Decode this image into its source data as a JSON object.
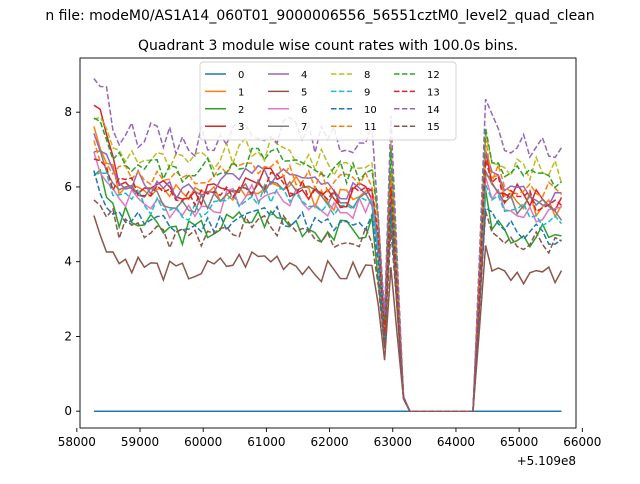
{
  "chart_data": {
    "type": "line",
    "suptitle": "n file: modeM0/AS1A14_060T01_9000006556_56551cztM0_level2_quad_clean",
    "title": "Quadrant 3 module wise count rates with 100.0s bins.",
    "xlabel": "",
    "ylabel": "",
    "x_offset_label": "+5.109e8",
    "xlim": [
      58050,
      65900
    ],
    "ylim": [
      -0.45,
      9.45
    ],
    "xticks": [
      58000,
      59000,
      60000,
      61000,
      62000,
      63000,
      64000,
      65000,
      66000
    ],
    "yticks": [
      0,
      2,
      4,
      6,
      8
    ],
    "grid": false,
    "legend_position": "top-center",
    "legend_columns": 4,
    "x_range": [
      58270,
      65670
    ],
    "bin_width": 100,
    "gap_start": 63370,
    "gap_end": 64370,
    "series": [
      {
        "name": "0",
        "color": "#1f77b4",
        "dash": "solid",
        "mean": 0.0,
        "start": 0.0,
        "noise": 0.0,
        "seed": 1
      },
      {
        "name": "1",
        "color": "#ff7f0e",
        "dash": "solid",
        "mean": 5.9,
        "start": 7.7,
        "noise": 0.35,
        "seed": 2
      },
      {
        "name": "2",
        "color": "#2ca02c",
        "dash": "solid",
        "mean": 5.0,
        "start": 6.5,
        "noise": 0.35,
        "seed": 3
      },
      {
        "name": "3",
        "color": "#d62728",
        "dash": "solid",
        "mean": 6.0,
        "start": 8.5,
        "noise": 0.35,
        "seed": 4
      },
      {
        "name": "4",
        "color": "#9467bd",
        "dash": "solid",
        "mean": 6.1,
        "start": 7.2,
        "noise": 0.3,
        "seed": 5
      },
      {
        "name": "5",
        "color": "#8c564b",
        "dash": "solid",
        "mean": 3.9,
        "start": 5.1,
        "noise": 0.3,
        "seed": 6
      },
      {
        "name": "6",
        "color": "#e377c2",
        "dash": "solid",
        "mean": 5.6,
        "start": 6.9,
        "noise": 0.3,
        "seed": 7
      },
      {
        "name": "7",
        "color": "#7f7f7f",
        "dash": "solid",
        "mean": 5.8,
        "start": 7.0,
        "noise": 0.3,
        "seed": 8
      },
      {
        "name": "8",
        "color": "#bcbd22",
        "dash": "dashed",
        "mean": 6.8,
        "start": 8.0,
        "noise": 0.35,
        "seed": 9
      },
      {
        "name": "9",
        "color": "#17becf",
        "dash": "dashed",
        "mean": 5.6,
        "start": 6.6,
        "noise": 0.3,
        "seed": 10
      },
      {
        "name": "10",
        "color": "#1f77b4",
        "dash": "dashed",
        "mean": 5.1,
        "start": 6.2,
        "noise": 0.3,
        "seed": 11
      },
      {
        "name": "11",
        "color": "#ff7f0e",
        "dash": "dashed",
        "mean": 6.3,
        "start": 7.1,
        "noise": 0.3,
        "seed": 12
      },
      {
        "name": "12",
        "color": "#2ca02c",
        "dash": "dashed",
        "mean": 6.6,
        "start": 7.8,
        "noise": 0.3,
        "seed": 13
      },
      {
        "name": "13",
        "color": "#d62728",
        "dash": "dashed",
        "mean": 5.9,
        "start": 6.8,
        "noise": 0.3,
        "seed": 14
      },
      {
        "name": "14",
        "color": "#9467bd",
        "dash": "dashed",
        "mean": 7.4,
        "start": 9.1,
        "noise": 0.4,
        "seed": 15
      },
      {
        "name": "15",
        "color": "#8c564b",
        "dash": "dashed",
        "mean": 4.8,
        "start": 5.9,
        "noise": 0.3,
        "seed": 16
      }
    ]
  }
}
